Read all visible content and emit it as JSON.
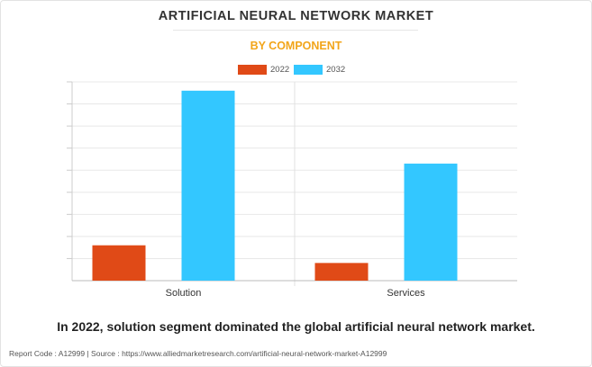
{
  "header": {
    "title": "ARTIFICIAL NEURAL NETWORK MARKET",
    "subtitle": "BY COMPONENT"
  },
  "chart_data": {
    "type": "bar",
    "title": "ARTIFICIAL NEURAL NETWORK MARKET",
    "subtitle": "BY COMPONENT",
    "categories": [
      "Solution",
      "Services"
    ],
    "series": [
      {
        "name": "2022",
        "color": "#e04a17",
        "values": [
          1.6,
          0.8
        ]
      },
      {
        "name": "2032",
        "color": "#33c7ff",
        "values": [
          8.6,
          5.3
        ]
      }
    ],
    "ylim": [
      0,
      9
    ],
    "y_tick_labels_shown": false,
    "grid": true,
    "legend": "top-center",
    "xlabel": "",
    "ylabel": ""
  },
  "footer": {
    "statement": "In 2022, solution segment dominated the global artificial neural network market.",
    "report_info": "Report Code : A12999  |  Source : https://www.alliedmarketresearch.com/artificial-neural-network-market-A12999"
  }
}
